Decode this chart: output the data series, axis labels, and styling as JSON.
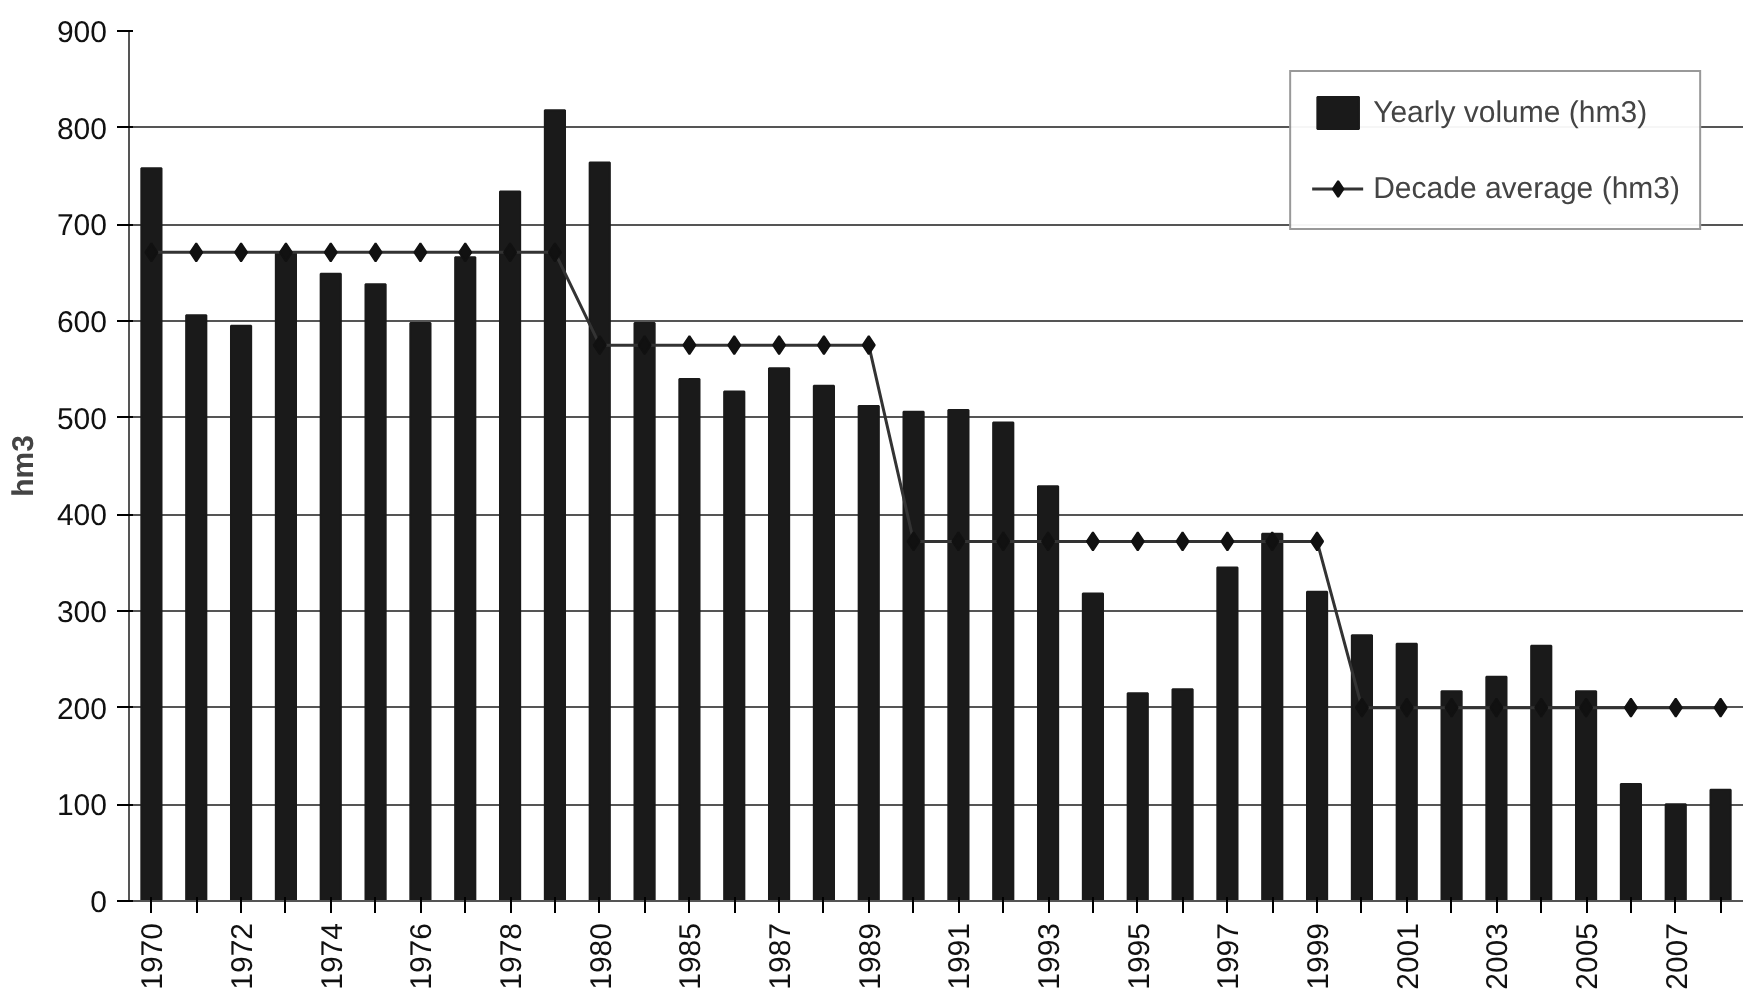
{
  "chart_data": {
    "type": "bar",
    "ylabel": "hm3",
    "categories": [
      "1970",
      null,
      "1972",
      null,
      "1974",
      null,
      "1976",
      null,
      "1978",
      null,
      "1980",
      null,
      "1985",
      null,
      "1987",
      null,
      "1989",
      null,
      "1991",
      null,
      "1993",
      null,
      "1995",
      null,
      "1997",
      null,
      "1999",
      null,
      "2001",
      null,
      "2003",
      null,
      "2005",
      null,
      "2007",
      null
    ],
    "series": [
      {
        "name": "Yearly volume (hm3)",
        "color": "#1a1a1a",
        "values": [
          758,
          606,
          595,
          670,
          649,
          638,
          598,
          666,
          734,
          818,
          764,
          598,
          540,
          527,
          551,
          533,
          512,
          506,
          508,
          495,
          429,
          318,
          215,
          219,
          345,
          380,
          320,
          275,
          266,
          217,
          232,
          264,
          217,
          121,
          100,
          115
        ]
      },
      {
        "name": "Decade average (hm3)",
        "type": "line",
        "color": "#333333",
        "marker": "diamond",
        "values": [
          671,
          671,
          671,
          671,
          671,
          671,
          671,
          671,
          671,
          671,
          575,
          575,
          575,
          575,
          575,
          575,
          575,
          372,
          372,
          372,
          372,
          372,
          372,
          372,
          372,
          372,
          372,
          200,
          200,
          200,
          200,
          200,
          200,
          200,
          200,
          200
        ]
      }
    ],
    "ylim": [
      0,
      900
    ],
    "yticks": [
      0,
      100,
      200,
      300,
      400,
      500,
      600,
      700,
      800,
      900
    ],
    "grid": "y",
    "legend": "top right"
  }
}
